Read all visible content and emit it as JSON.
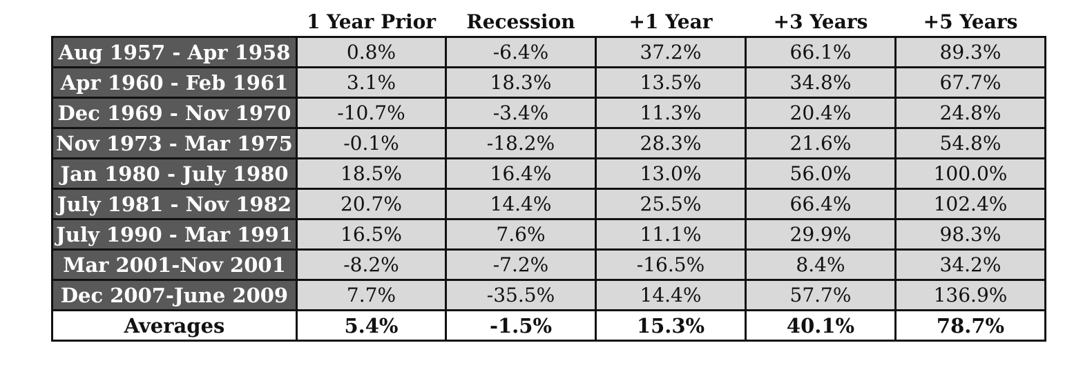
{
  "chart_data": {
    "type": "table",
    "columns": [
      "1 Year Prior",
      "Recession",
      "+1 Year",
      "+3 Years",
      "+5 Years"
    ],
    "rows": [
      {
        "label": "Aug 1957 - Apr 1958",
        "values": [
          "0.8%",
          "-6.4%",
          "37.2%",
          "66.1%",
          "89.3%"
        ]
      },
      {
        "label": "Apr 1960 - Feb 1961",
        "values": [
          "3.1%",
          "18.3%",
          "13.5%",
          "34.8%",
          "67.7%"
        ]
      },
      {
        "label": "Dec 1969 - Nov 1970",
        "values": [
          "-10.7%",
          "-3.4%",
          "11.3%",
          "20.4%",
          "24.8%"
        ]
      },
      {
        "label": "Nov 1973 - Mar 1975",
        "values": [
          "-0.1%",
          "-18.2%",
          "28.3%",
          "21.6%",
          "54.8%"
        ]
      },
      {
        "label": "Jan 1980 - July 1980",
        "values": [
          "18.5%",
          "16.4%",
          "13.0%",
          "56.0%",
          "100.0%"
        ]
      },
      {
        "label": "July 1981 - Nov 1982",
        "values": [
          "20.7%",
          "14.4%",
          "25.5%",
          "66.4%",
          "102.4%"
        ]
      },
      {
        "label": "July 1990 - Mar 1991",
        "values": [
          "16.5%",
          "7.6%",
          "11.1%",
          "29.9%",
          "98.3%"
        ]
      },
      {
        "label": "Mar 2001-Nov 2001",
        "values": [
          "-8.2%",
          "-7.2%",
          "-16.5%",
          "8.4%",
          "34.2%"
        ]
      },
      {
        "label": "Dec 2007-June 2009",
        "values": [
          "7.7%",
          "-35.5%",
          "14.4%",
          "57.7%",
          "136.9%"
        ]
      }
    ],
    "averages": {
      "label": "Averages",
      "values": [
        "5.4%",
        "-1.5%",
        "15.3%",
        "40.1%",
        "78.7%"
      ]
    },
    "colors": {
      "label_cell_bg": "#595959",
      "label_cell_text": "#ffffff",
      "value_cell_bg": "#d9d9d9",
      "border": "#111111",
      "average_row_bg": "#ffffff"
    }
  }
}
